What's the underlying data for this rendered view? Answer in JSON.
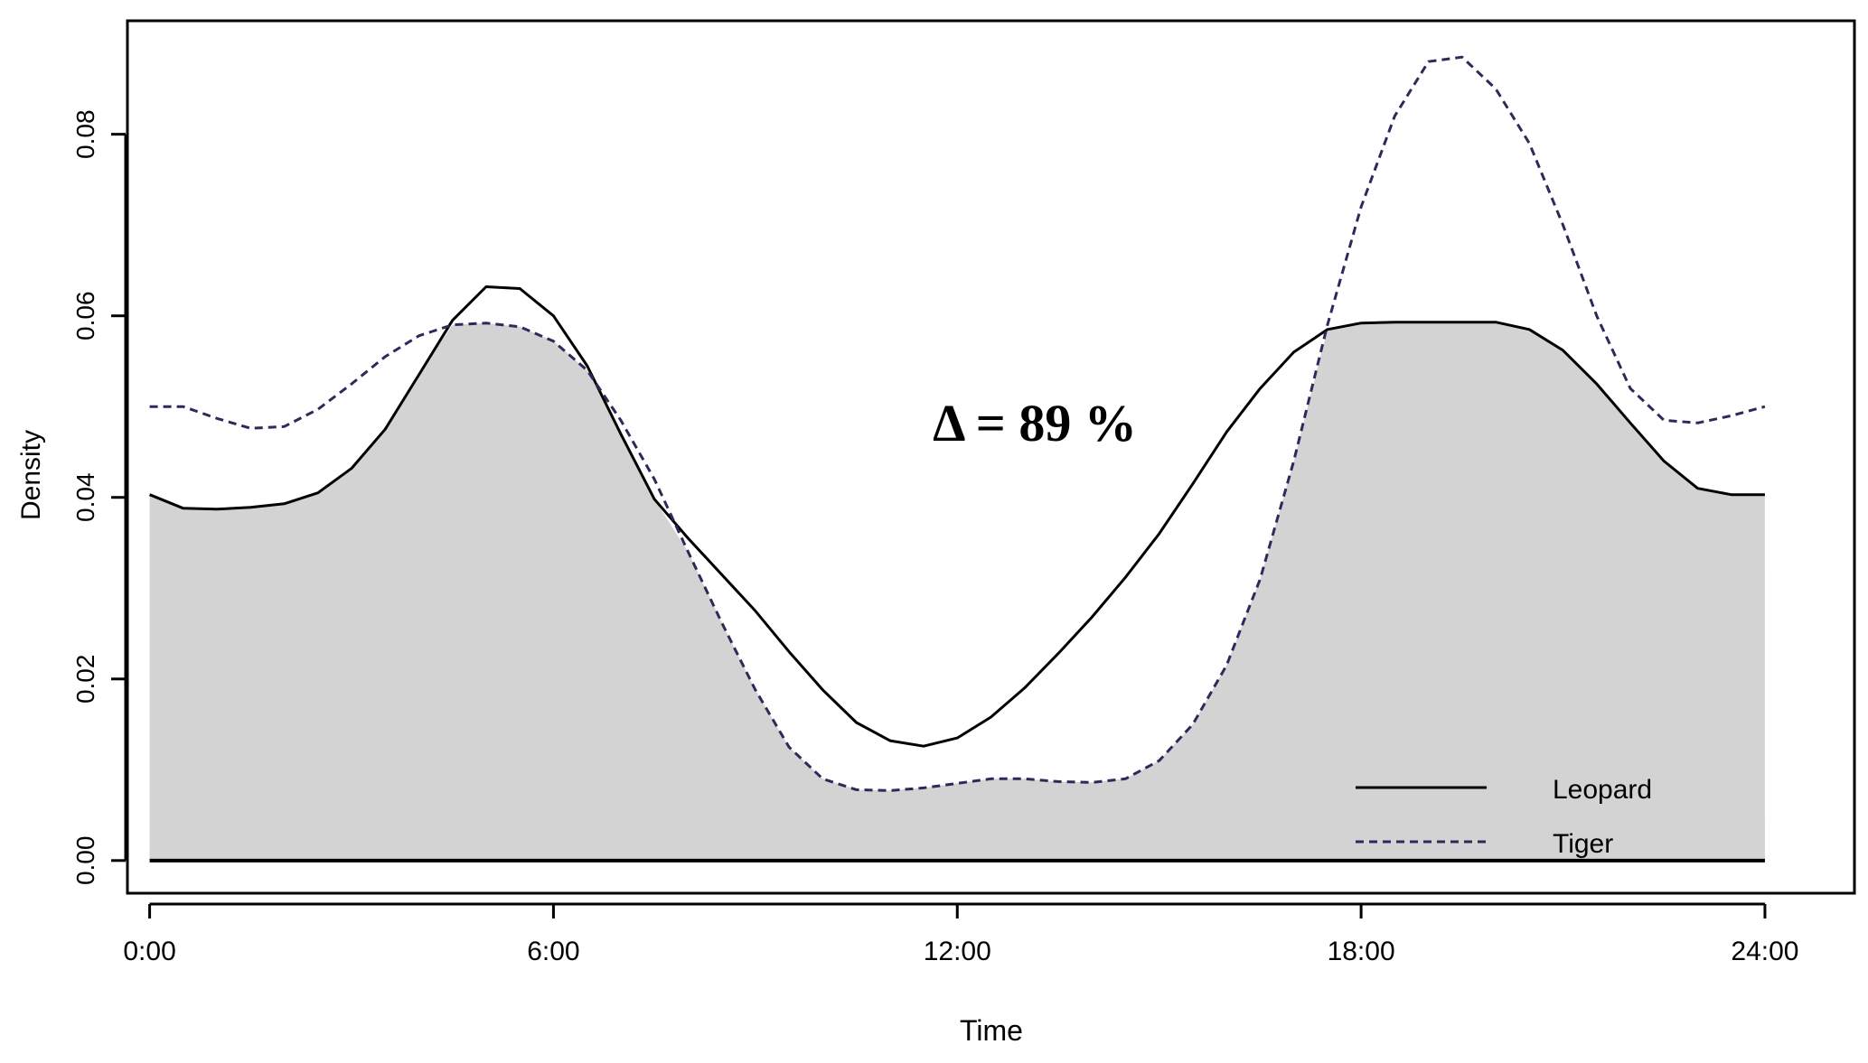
{
  "chart_data": {
    "type": "line",
    "title": "",
    "xlabel": "Time",
    "ylabel": "Density",
    "xlim": [
      -0.33,
      25.33
    ],
    "ylim": [
      -0.0036,
      0.0925
    ],
    "x_ticks": [
      0,
      6,
      12,
      18,
      24
    ],
    "x_tick_labels": [
      "0:00",
      "6:00",
      "12:00",
      "18:00",
      "24:00"
    ],
    "y_ticks": [
      0,
      0.02,
      0.04,
      0.06,
      0.08
    ],
    "y_tick_labels": [
      "0.00",
      "0.02",
      "0.04",
      "0.06",
      "0.08"
    ],
    "annotation": "Δ = 89 %",
    "overlap_fill_color": "#d3d3d3",
    "grid": false,
    "legend_position": "bottom-right",
    "series": [
      {
        "name": "Leopard",
        "style": "solid",
        "color": "#000000",
        "x": [
          0,
          0.5,
          1,
          1.5,
          2,
          2.5,
          3,
          3.5,
          4,
          4.5,
          5,
          5.5,
          6,
          6.5,
          7,
          7.5,
          8,
          8.5,
          9,
          9.5,
          10,
          10.5,
          11,
          11.5,
          12,
          12.5,
          13,
          13.5,
          14,
          14.5,
          15,
          15.5,
          16,
          16.5,
          17,
          17.5,
          18,
          18.5,
          19,
          19.5,
          20,
          20.5,
          21,
          21.5,
          22,
          22.5,
          23,
          23.5,
          24
        ],
        "y": [
          0.0403,
          0.0388,
          0.0387,
          0.0389,
          0.0393,
          0.0405,
          0.0432,
          0.0475,
          0.0535,
          0.0595,
          0.0632,
          0.063,
          0.06,
          0.0545,
          0.047,
          0.0398,
          0.0355,
          0.0315,
          0.0275,
          0.023,
          0.0188,
          0.0152,
          0.0132,
          0.0126,
          0.0135,
          0.0158,
          0.019,
          0.0228,
          0.0268,
          0.0312,
          0.036,
          0.0415,
          0.0472,
          0.052,
          0.056,
          0.0585,
          0.0592,
          0.0593,
          0.0593,
          0.0593,
          0.0593,
          0.0585,
          0.0562,
          0.0525,
          0.0482,
          0.044,
          0.041,
          0.0403,
          0.0403
        ]
      },
      {
        "name": "Tiger",
        "style": "dashed",
        "color": "#2b2b5a",
        "x": [
          0,
          0.5,
          1,
          1.5,
          2,
          2.5,
          3,
          3.5,
          4,
          4.5,
          5,
          5.5,
          6,
          6.5,
          7,
          7.5,
          8,
          8.5,
          9,
          9.5,
          10,
          10.5,
          11,
          11.5,
          12,
          12.5,
          13,
          13.5,
          14,
          14.5,
          15,
          15.5,
          16,
          16.5,
          17,
          17.5,
          18,
          18.5,
          19,
          19.5,
          20,
          20.5,
          21,
          21.5,
          22,
          22.5,
          23,
          23.5,
          24
        ],
        "y": [
          0.05,
          0.05,
          0.0487,
          0.0476,
          0.0478,
          0.0497,
          0.0525,
          0.0555,
          0.0578,
          0.059,
          0.0592,
          0.0588,
          0.0572,
          0.054,
          0.0485,
          0.042,
          0.034,
          0.0262,
          0.0188,
          0.0125,
          0.009,
          0.0078,
          0.0077,
          0.008,
          0.0085,
          0.009,
          0.009,
          0.0087,
          0.0086,
          0.009,
          0.011,
          0.015,
          0.0215,
          0.031,
          0.044,
          0.059,
          0.072,
          0.082,
          0.088,
          0.0885,
          0.085,
          0.079,
          0.07,
          0.06,
          0.052,
          0.0485,
          0.0482,
          0.049,
          0.05
        ]
      }
    ]
  }
}
